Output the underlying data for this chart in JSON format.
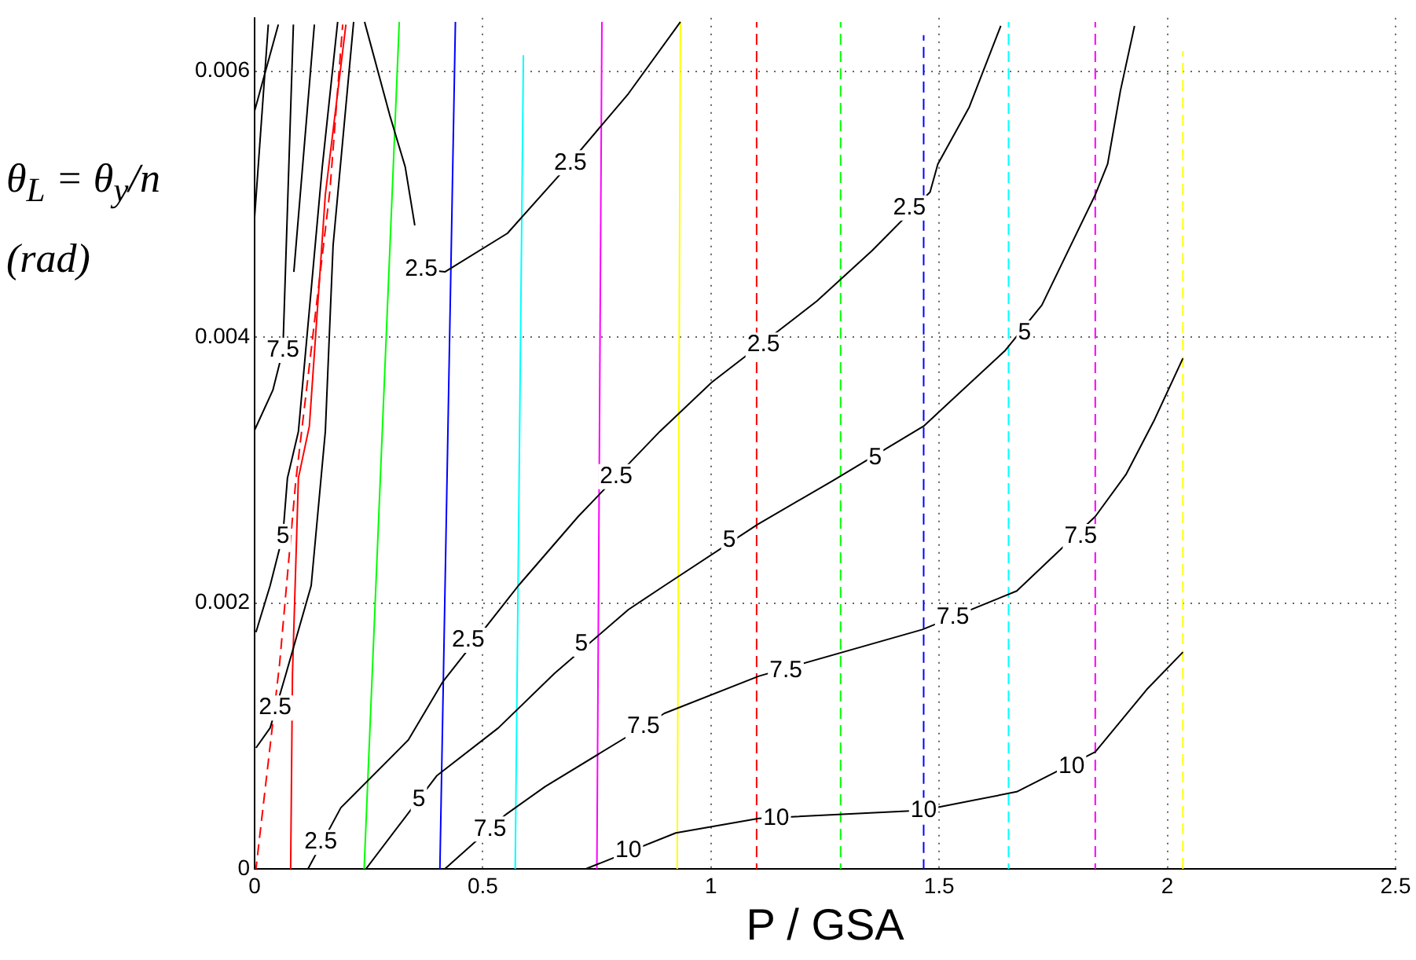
{
  "chart_data": {
    "type": "line",
    "xlabel": "P / GSA",
    "ylabel": "θ$_{L}$ = θ$_{y}$/n (rad)",
    "xlim": [
      0,
      2.5
    ],
    "xticks": [
      0,
      0.5,
      1,
      1.5,
      2,
      2.5
    ],
    "ylim": [
      0,
      0.0064
    ],
    "yticks": [
      0,
      0.002,
      0.004,
      0.006
    ],
    "grid": true,
    "legend": false,
    "marker": "none",
    "series": [
      {
        "color": "#000000",
        "line_style": "solid",
        "x": [
          0.117,
          0.189,
          0.337,
          0.413,
          0.578,
          0.709,
          0.888,
          1.002,
          1.232,
          1.353,
          1.48,
          1.497,
          1.566,
          1.635
        ],
        "values": [
          0,
          0.00046,
          0.00097,
          0.00141,
          0.00213,
          0.00265,
          0.00329,
          0.00366,
          0.00427,
          0.00465,
          0.00509,
          0.0053,
          0.00573,
          0.00634
        ]
      },
      {
        "color": "#000000",
        "line_style": "solid",
        "x": [
          0.244,
          0.399,
          0.534,
          0.657,
          0.819,
          0.898,
          1.102,
          1.267,
          1.466,
          1.645,
          1.725,
          1.842,
          1.869,
          1.897,
          1.928
        ],
        "values": [
          0,
          0.0007,
          0.00106,
          0.00147,
          0.00195,
          0.00213,
          0.00259,
          0.00292,
          0.00333,
          0.0039,
          0.00424,
          0.00507,
          0.0053,
          0.00585,
          0.00634
        ]
      },
      {
        "color": "#000000",
        "line_style": "solid",
        "x": [
          0.417,
          0.551,
          0.637,
          0.819,
          0.898,
          1.105,
          1.463,
          1.67,
          1.842,
          1.91,
          1.972,
          2.034
        ],
        "values": [
          0,
          0.00041,
          0.00062,
          0.001,
          0.00117,
          0.00145,
          0.0018,
          0.00209,
          0.00265,
          0.00297,
          0.00338,
          0.00384
        ]
      },
      {
        "color": "#000000",
        "line_style": "solid",
        "x": [
          0.726,
          0.923,
          1.105,
          1.463,
          1.67,
          1.842,
          1.955,
          2.034
        ],
        "values": [
          0,
          0.00027,
          0.00038,
          0.00044,
          0.00058,
          0.00088,
          0.00135,
          0.00163
        ]
      },
      {
        "color": "#000000",
        "line_style": "solid",
        "x": [
          0.365,
          0.417,
          0.554,
          0.671,
          0.819,
          0.933
        ],
        "values": [
          0.00451,
          0.00449,
          0.00478,
          0.00523,
          0.00583,
          0.00637
        ]
      },
      {
        "color": "#000000",
        "line_style": "solid",
        "x": [
          0.241,
          0.296,
          0.33,
          0.351
        ],
        "values": [
          0.00637,
          0.00567,
          0.00528,
          0.00484
        ]
      },
      {
        "color": "#000000",
        "line_style": "solid",
        "x": [
          0.003,
          0.034,
          0.062,
          0.072,
          0.096,
          0.148,
          0.182
        ],
        "values": [
          0.00178,
          0.00213,
          0.00251,
          0.00294,
          0.00329,
          0.00527,
          0.00637
        ]
      },
      {
        "color": "#000000",
        "line_style": "solid",
        "x": [
          0.003,
          0.034,
          0.069,
          0.124,
          0.155,
          0.172,
          0.217
        ],
        "values": [
          0.00091,
          0.00106,
          0.00147,
          0.00213,
          0.00329,
          0.00469,
          0.00637
        ]
      },
      {
        "color": "#000000",
        "line_style": "solid",
        "x": [
          0,
          0.04,
          0.062,
          0.085
        ],
        "values": [
          0.0033,
          0.0036,
          0.0039,
          0.00635
        ]
      },
      {
        "color": "#000000",
        "line_style": "solid",
        "x": [
          0.086,
          0.131
        ],
        "values": [
          0.00449,
          0.00635
        ]
      },
      {
        "color": "#000000",
        "line_style": "solid",
        "x": [
          0,
          0.03
        ],
        "values": [
          0.0049,
          0.00635
        ]
      },
      {
        "color": "#000000",
        "line_style": "solid",
        "x": [
          0,
          0.052
        ],
        "values": [
          0.0057,
          0.00635
        ]
      },
      {
        "color": "#ff0000",
        "line_style": "dashed",
        "x": [
          0.003,
          0.055,
          0.09,
          0.165,
          0.193
        ],
        "values": [
          0,
          0.00155,
          0.00291,
          0.0051,
          0.00635
        ]
      },
      {
        "color": "#ff0000",
        "line_style": "solid",
        "x": [
          0.079,
          0.083,
          0.096,
          0.12,
          0.155,
          0.2
        ],
        "values": [
          0,
          0.00147,
          0.00294,
          0.00333,
          0.00507,
          0.00635
        ]
      },
      {
        "color": "#00ff00",
        "line_style": "solid",
        "x": [
          0.24,
          0.317
        ],
        "values": [
          0,
          0.00637
        ]
      },
      {
        "color": "#0000ff",
        "line_style": "solid",
        "x": [
          0.406,
          0.44
        ],
        "values": [
          0,
          0.00637
        ]
      },
      {
        "color": "#00ffff",
        "line_style": "solid",
        "x": [
          0.571,
          0.589
        ],
        "values": [
          0,
          0.00612
        ]
      },
      {
        "color": "#ff00ff",
        "line_style": "solid",
        "x": [
          0.75,
          0.761
        ],
        "values": [
          0,
          0.00637
        ]
      },
      {
        "color": "#ffff00",
        "line_style": "solid",
        "x": [
          0.926,
          0.933
        ],
        "values": [
          0,
          0.00637
        ]
      },
      {
        "color": "#ff0000",
        "line_style": "dashed",
        "x": [
          1.1,
          1.1
        ],
        "values": [
          0,
          0.00637
        ]
      },
      {
        "color": "#00ff00",
        "line_style": "dashed",
        "x": [
          1.284,
          1.284
        ],
        "values": [
          0,
          0.00637
        ]
      },
      {
        "color": "#0000ff",
        "line_style": "dashed",
        "x": [
          1.466,
          1.466
        ],
        "values": [
          0,
          0.00627
        ]
      },
      {
        "color": "#00ffff",
        "line_style": "dashed",
        "x": [
          1.652,
          1.652
        ],
        "values": [
          0,
          0.00637
        ]
      },
      {
        "color": "#ff00ff",
        "line_style": "dashed",
        "x": [
          1.842,
          1.842
        ],
        "values": [
          0,
          0.00637
        ]
      },
      {
        "color": "#ffff00",
        "line_style": "dashed",
        "x": [
          2.034,
          2.034
        ],
        "values": [
          0,
          0.00615
        ]
      }
    ],
    "annotations": [
      {
        "text": "2.5",
        "x": 0.145,
        "y": 0.0002
      },
      {
        "text": "2.5",
        "x": 0.468,
        "y": 0.00172
      },
      {
        "text": "2.5",
        "x": 0.792,
        "y": 0.00295
      },
      {
        "text": "2.5",
        "x": 1.115,
        "y": 0.00394
      },
      {
        "text": "2.5",
        "x": 1.435,
        "y": 0.00497
      },
      {
        "text": "2.5",
        "x": 0.365,
        "y": 0.00451
      },
      {
        "text": "2.5",
        "x": 0.692,
        "y": 0.00531
      },
      {
        "text": "2.5",
        "x": 0.045,
        "y": 0.00121
      },
      {
        "text": "5",
        "x": 0.36,
        "y": 0.00052
      },
      {
        "text": "5",
        "x": 0.716,
        "y": 0.00169
      },
      {
        "text": "5",
        "x": 1.04,
        "y": 0.00247
      },
      {
        "text": "5",
        "x": 1.36,
        "y": 0.00309
      },
      {
        "text": "5",
        "x": 1.687,
        "y": 0.00403
      },
      {
        "text": "5",
        "x": 0.062,
        "y": 0.0025
      },
      {
        "text": "7.5",
        "x": 0.516,
        "y": 0.0003
      },
      {
        "text": "7.5",
        "x": 0.852,
        "y": 0.00107
      },
      {
        "text": "7.5",
        "x": 1.164,
        "y": 0.00149
      },
      {
        "text": "7.5",
        "x": 1.53,
        "y": 0.00189
      },
      {
        "text": "7.5",
        "x": 1.81,
        "y": 0.0025
      },
      {
        "text": "7.5",
        "x": 0.062,
        "y": 0.0039
      },
      {
        "text": "10",
        "x": 0.819,
        "y": 0.00014
      },
      {
        "text": "10",
        "x": 1.143,
        "y": 0.00038
      },
      {
        "text": "10",
        "x": 1.466,
        "y": 0.00044
      },
      {
        "text": "10",
        "x": 1.79,
        "y": 0.00077
      }
    ]
  }
}
